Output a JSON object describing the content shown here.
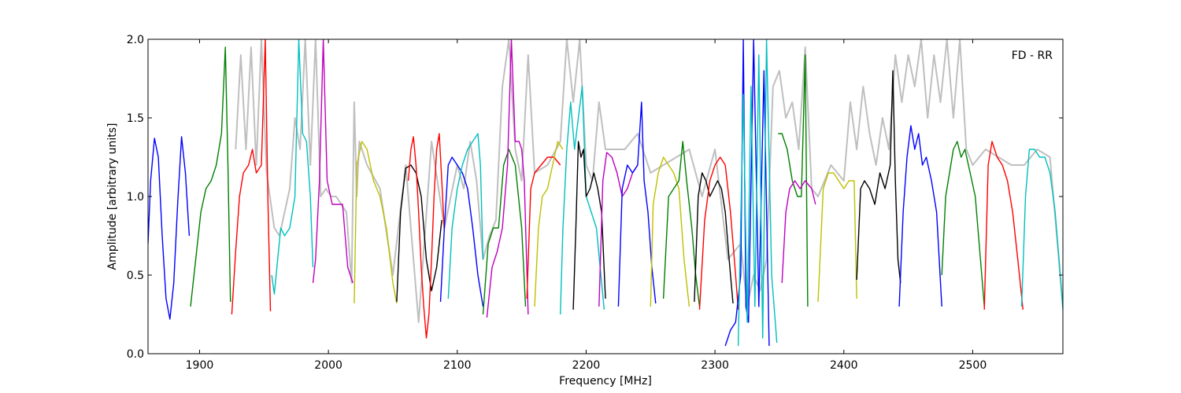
{
  "chart_data": {
    "type": "line",
    "title": "",
    "annotation": "FD - RR",
    "xlabel": "Frequency [MHz]",
    "ylabel": "Amplitude [arbitrary units]",
    "xlim": [
      1860,
      2570
    ],
    "ylim": [
      0.0,
      2.0
    ],
    "x_ticks": [
      1900,
      2000,
      2100,
      2200,
      2300,
      2400,
      2500
    ],
    "x_tick_labels": [
      "1900",
      "2000",
      "2100",
      "2200",
      "2300",
      "2400",
      "2500"
    ],
    "y_ticks": [
      0.0,
      0.5,
      1.0,
      1.5,
      2.0
    ],
    "y_tick_labels": [
      "0.0",
      "0.5",
      "1.0",
      "1.5",
      "2.0"
    ],
    "grid": false,
    "background_series": {
      "color": "#bfbfbf",
      "x": [
        1928,
        1932,
        1936,
        1940,
        1944,
        1948,
        1952,
        1958,
        1962,
        1966,
        1970,
        1974,
        1978,
        1982,
        1986,
        1990,
        1994,
        1998,
        2002,
        2006,
        2010,
        2014,
        2018,
        2020,
        2022,
        2024,
        2026,
        2030,
        2040,
        2050,
        2060,
        2070,
        2080,
        2090,
        2100,
        2105,
        2110,
        2115,
        2120,
        2125,
        2130,
        2135,
        2140,
        2145,
        2150,
        2155,
        2160,
        2170,
        2180,
        2185,
        2190,
        2195,
        2200,
        2205,
        2210,
        2215,
        2220,
        2230,
        2240,
        2250,
        2260,
        2270,
        2280,
        2290,
        2300,
        2310,
        2315,
        2320,
        2325,
        2330,
        2335,
        2340,
        2345,
        2350,
        2355,
        2360,
        2365,
        2370,
        2375,
        2380,
        2390,
        2400,
        2405,
        2410,
        2415,
        2420,
        2425,
        2430,
        2435,
        2440,
        2445,
        2450,
        2455,
        2460,
        2465,
        2470,
        2475,
        2480,
        2485,
        2490,
        2495,
        2500,
        2510,
        2520,
        2530,
        2540,
        2550,
        2560,
        2570
      ],
      "y": [
        1.3,
        1.9,
        1.3,
        1.95,
        1.2,
        2.0,
        1.15,
        0.8,
        0.75,
        0.9,
        1.05,
        1.5,
        1.3,
        2.0,
        1.2,
        2.0,
        1.0,
        1.05,
        1.0,
        1.0,
        0.95,
        0.9,
        0.45,
        1.6,
        1.0,
        1.35,
        1.3,
        1.2,
        1.05,
        0.5,
        1.2,
        0.2,
        1.35,
        0.8,
        1.2,
        1.05,
        1.35,
        1.1,
        0.6,
        0.75,
        0.85,
        1.7,
        2.0,
        1.3,
        1.1,
        1.9,
        1.15,
        1.2,
        1.35,
        2.0,
        1.6,
        2.0,
        1.2,
        1.1,
        1.6,
        1.3,
        1.3,
        1.3,
        1.4,
        1.15,
        1.2,
        1.25,
        1.3,
        1.0,
        1.3,
        0.6,
        0.65,
        0.7,
        0.3,
        0.5,
        0.4,
        0.6,
        1.7,
        1.8,
        1.5,
        1.6,
        1.3,
        1.95,
        1.05,
        1.0,
        1.2,
        1.1,
        1.6,
        1.3,
        1.7,
        1.4,
        1.2,
        1.5,
        1.3,
        1.9,
        1.6,
        1.9,
        1.7,
        2.0,
        1.5,
        1.9,
        1.6,
        2.0,
        1.5,
        2.0,
        1.3,
        1.2,
        1.3,
        1.25,
        1.2,
        1.2,
        1.3,
        1.25,
        0.3
      ]
    },
    "series": [
      {
        "color": "#0000ff",
        "x": [
          1860,
          1862,
          1865,
          1868,
          1871,
          1874,
          1877,
          1880,
          1883,
          1886,
          1889,
          1892
        ],
        "y": [
          0.7,
          1.1,
          1.37,
          1.25,
          0.75,
          0.35,
          0.22,
          0.45,
          0.95,
          1.38,
          1.15,
          0.75
        ]
      },
      {
        "color": "#008000",
        "x": [
          1893,
          1897,
          1901,
          1905,
          1909,
          1913,
          1917,
          1920,
          1922,
          1924
        ],
        "y": [
          0.3,
          0.6,
          0.9,
          1.05,
          1.1,
          1.2,
          1.4,
          1.95,
          1.2,
          0.33
        ]
      },
      {
        "color": "#ff0000",
        "x": [
          1925,
          1928,
          1931,
          1934,
          1938,
          1941,
          1944,
          1948,
          1951,
          1953,
          1955
        ],
        "y": [
          0.25,
          0.65,
          1.0,
          1.15,
          1.2,
          1.3,
          1.15,
          1.2,
          2.0,
          1.0,
          0.27
        ]
      },
      {
        "color": "#00bfbf",
        "x": [
          1956,
          1958,
          1960,
          1963,
          1966,
          1970,
          1974,
          1977,
          1980,
          1983,
          1986,
          1988
        ],
        "y": [
          0.5,
          0.38,
          0.55,
          0.8,
          0.75,
          0.8,
          1.0,
          2.0,
          1.4,
          1.35,
          1.0,
          0.55
        ]
      },
      {
        "color": "#bf00bf",
        "x": [
          1988,
          1990,
          1993,
          1996,
          1999,
          2003,
          2007,
          2011,
          2015,
          2019
        ],
        "y": [
          0.45,
          0.6,
          1.1,
          2.0,
          1.1,
          0.95,
          0.95,
          0.95,
          0.55,
          0.45
        ]
      },
      {
        "color": "#bfbf00",
        "x": [
          2020,
          2022,
          2026,
          2030,
          2035,
          2040,
          2045,
          2050,
          2053
        ],
        "y": [
          0.32,
          1.2,
          1.35,
          1.3,
          1.1,
          1.0,
          0.8,
          0.45,
          0.32
        ]
      },
      {
        "color": "#000000",
        "x": [
          2053,
          2056,
          2060,
          2064,
          2068,
          2072,
          2076,
          2080,
          2084,
          2088
        ],
        "y": [
          0.33,
          0.9,
          1.18,
          1.2,
          1.15,
          1.0,
          0.6,
          0.4,
          0.55,
          0.85
        ]
      },
      {
        "color": "#ff0000",
        "x": [
          2062,
          2064,
          2066,
          2068,
          2070,
          2072,
          2074,
          2076,
          2078,
          2080,
          2082,
          2084,
          2086,
          2088,
          2090
        ],
        "y": [
          1.1,
          1.3,
          1.38,
          1.2,
          0.9,
          0.55,
          0.3,
          0.1,
          0.25,
          0.6,
          1.0,
          1.3,
          1.4,
          1.1,
          0.78
        ]
      },
      {
        "color": "#0000ff",
        "x": [
          2087,
          2090,
          2093,
          2096,
          2100,
          2104,
          2108,
          2112,
          2116,
          2120
        ],
        "y": [
          0.33,
          0.8,
          1.2,
          1.25,
          1.2,
          1.15,
          1.05,
          0.8,
          0.5,
          0.3
        ]
      },
      {
        "color": "#00bfbf",
        "x": [
          2093,
          2096,
          2100,
          2104,
          2108,
          2112,
          2116,
          2118,
          2120
        ],
        "y": [
          0.35,
          0.8,
          1.05,
          1.2,
          1.3,
          1.35,
          1.4,
          1.2,
          0.6
        ]
      },
      {
        "color": "#008000",
        "x": [
          2120,
          2124,
          2128,
          2132,
          2136,
          2140,
          2145,
          2150,
          2153
        ],
        "y": [
          0.25,
          0.7,
          0.8,
          0.8,
          1.2,
          1.3,
          1.2,
          0.8,
          0.3
        ]
      },
      {
        "color": "#bf00bf",
        "x": [
          2123,
          2127,
          2131,
          2135,
          2139,
          2142,
          2145,
          2148,
          2150,
          2152,
          2155
        ],
        "y": [
          0.23,
          0.55,
          0.65,
          0.8,
          1.2,
          2.0,
          1.35,
          1.35,
          1.3,
          1.1,
          0.25
        ]
      },
      {
        "color": "#ff0000",
        "x": [
          2154,
          2157,
          2160,
          2165,
          2170,
          2175,
          2180
        ],
        "y": [
          0.35,
          1.05,
          1.15,
          1.2,
          1.25,
          1.25,
          1.2
        ]
      },
      {
        "color": "#bfbf00",
        "x": [
          2160,
          2163,
          2166,
          2170,
          2174,
          2178,
          2182
        ],
        "y": [
          0.3,
          0.8,
          1.0,
          1.05,
          1.2,
          1.35,
          1.3
        ]
      },
      {
        "color": "#00bfbf",
        "x": [
          2180,
          2182,
          2185,
          2188,
          2191,
          2194,
          2197,
          2200,
          2204,
          2208,
          2212,
          2214
        ],
        "y": [
          0.25,
          0.8,
          1.3,
          1.6,
          1.3,
          1.5,
          1.7,
          1.0,
          0.9,
          0.8,
          0.45,
          0.28
        ]
      },
      {
        "color": "#000000",
        "x": [
          2190,
          2192,
          2194,
          2196,
          2198,
          2200,
          2203,
          2206,
          2209,
          2212,
          2215
        ],
        "y": [
          0.28,
          0.8,
          1.35,
          1.25,
          1.3,
          1.0,
          1.05,
          1.15,
          1.05,
          0.9,
          0.35
        ]
      },
      {
        "color": "#bf00bf",
        "x": [
          2210,
          2213,
          2216,
          2220,
          2224,
          2228,
          2232,
          2236,
          2240
        ],
        "y": [
          0.3,
          1.1,
          1.28,
          1.25,
          1.15,
          1.0,
          1.05,
          1.15,
          1.2
        ]
      },
      {
        "color": "#0000ff",
        "x": [
          2225,
          2228,
          2232,
          2236,
          2240,
          2243,
          2245,
          2248,
          2251,
          2254
        ],
        "y": [
          0.3,
          1.05,
          1.2,
          1.15,
          1.2,
          1.6,
          1.1,
          0.9,
          0.55,
          0.32
        ]
      },
      {
        "color": "#bfbf00",
        "x": [
          2250,
          2252,
          2256,
          2260,
          2264,
          2268,
          2272,
          2276,
          2280
        ],
        "y": [
          0.3,
          0.95,
          1.15,
          1.25,
          1.2,
          1.15,
          1.05,
          0.6,
          0.3
        ]
      },
      {
        "color": "#008000",
        "x": [
          2260,
          2264,
          2268,
          2272,
          2275,
          2278,
          2282,
          2285,
          2288
        ],
        "y": [
          0.35,
          1.0,
          1.05,
          1.1,
          1.35,
          1.1,
          0.8,
          0.5,
          0.3
        ]
      },
      {
        "color": "#000000",
        "x": [
          2284,
          2287,
          2290,
          2293,
          2296,
          2299,
          2302,
          2305,
          2308,
          2311,
          2314
        ],
        "y": [
          0.33,
          1.0,
          1.15,
          1.1,
          1.0,
          1.05,
          1.1,
          1.05,
          0.9,
          0.6,
          0.32
        ]
      },
      {
        "color": "#ff0000",
        "x": [
          2288,
          2292,
          2296,
          2300,
          2304,
          2308,
          2312,
          2316,
          2318
        ],
        "y": [
          0.28,
          0.85,
          1.1,
          1.2,
          1.25,
          1.2,
          0.9,
          0.5,
          0.28
        ]
      },
      {
        "color": "#0000ff",
        "x": [
          2308,
          2312,
          2316,
          2320,
          2322,
          2324,
          2326,
          2330,
          2334,
          2338,
          2342
        ],
        "y": [
          0.05,
          0.15,
          0.2,
          0.5,
          2.0,
          0.3,
          0.2,
          2.0,
          0.3,
          1.8,
          0.05
        ]
      },
      {
        "color": "#00bfbf",
        "x": [
          2318,
          2322,
          2325,
          2328,
          2331,
          2334,
          2337,
          2340,
          2344,
          2348
        ],
        "y": [
          0.05,
          1.65,
          0.2,
          1.7,
          0.3,
          1.9,
          0.1,
          2.0,
          0.5,
          0.07
        ]
      },
      {
        "color": "#008000",
        "x": [
          2349,
          2352,
          2356,
          2360,
          2364,
          2367,
          2370,
          2372
        ],
        "y": [
          1.4,
          1.4,
          1.3,
          1.1,
          1.0,
          1.0,
          1.9,
          0.3
        ]
      },
      {
        "color": "#bf00bf",
        "x": [
          2352,
          2355,
          2358,
          2362,
          2366,
          2370,
          2375,
          2378
        ],
        "y": [
          0.45,
          0.9,
          1.05,
          1.1,
          1.05,
          1.1,
          1.05,
          0.95
        ]
      },
      {
        "color": "#bfbf00",
        "x": [
          2380,
          2384,
          2388,
          2392,
          2396,
          2400,
          2404,
          2408,
          2410
        ],
        "y": [
          0.33,
          1.05,
          1.15,
          1.15,
          1.1,
          1.05,
          1.1,
          1.1,
          0.35
        ]
      },
      {
        "color": "#000000",
        "x": [
          2410,
          2413,
          2416,
          2420,
          2424,
          2428,
          2432,
          2436,
          2438,
          2440,
          2442,
          2444
        ],
        "y": [
          0.47,
          1.05,
          1.1,
          1.05,
          0.95,
          1.15,
          1.05,
          1.2,
          1.8,
          1.1,
          0.6,
          0.45
        ]
      },
      {
        "color": "#0000ff",
        "x": [
          2443,
          2446,
          2449,
          2452,
          2455,
          2458,
          2461,
          2464,
          2468,
          2472,
          2476
        ],
        "y": [
          0.3,
          0.9,
          1.25,
          1.45,
          1.3,
          1.4,
          1.2,
          1.25,
          1.1,
          0.9,
          0.3
        ]
      },
      {
        "color": "#008000",
        "x": [
          2476,
          2479,
          2482,
          2485,
          2488,
          2491,
          2494,
          2498,
          2502,
          2506,
          2509
        ],
        "y": [
          0.5,
          1.0,
          1.15,
          1.3,
          1.35,
          1.25,
          1.3,
          1.15,
          1.0,
          0.6,
          0.3
        ]
      },
      {
        "color": "#ff0000",
        "x": [
          2509,
          2512,
          2515,
          2519,
          2523,
          2527,
          2531,
          2535,
          2539
        ],
        "y": [
          0.28,
          1.2,
          1.35,
          1.25,
          1.2,
          1.1,
          0.9,
          0.6,
          0.28
        ]
      },
      {
        "color": "#00bfbf",
        "x": [
          2538,
          2541,
          2544,
          2548,
          2552,
          2556,
          2560,
          2564,
          2567,
          2570
        ],
        "y": [
          0.3,
          1.0,
          1.3,
          1.3,
          1.25,
          1.25,
          1.15,
          0.9,
          0.6,
          0.28
        ]
      }
    ]
  }
}
